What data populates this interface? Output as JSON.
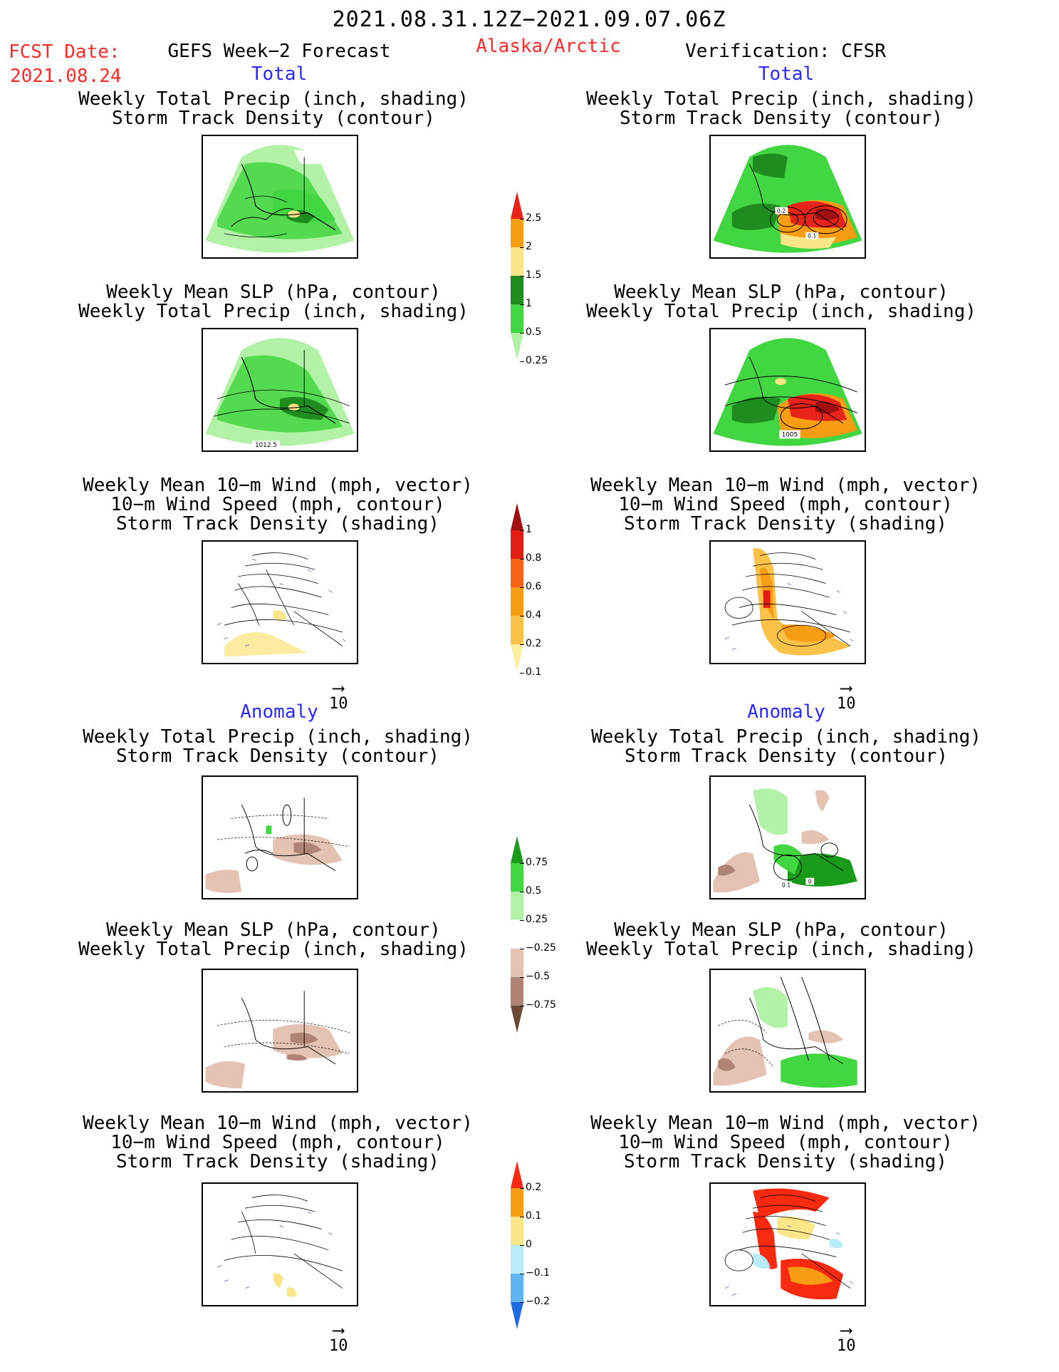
{
  "header": {
    "period": "2021.08.31.12Z−2021.09.07.06Z",
    "fcst_label": "FCST Date:",
    "fcst_date": "2021.08.24",
    "forecast_title": "GEFS Week−2 Forecast",
    "region": "Alaska/Arctic",
    "verification": "Verification: CFSR"
  },
  "sections": {
    "total_label": "Total",
    "anomaly_label": "Anomaly"
  },
  "panel_titles": {
    "precip_track": [
      "Weekly Total Precip (inch, shading)",
      "Storm Track Density (contour)"
    ],
    "slp_precip": [
      "Weekly Mean SLP (hPa, contour)",
      "Weekly Total Precip (inch, shading)"
    ],
    "wind_track": [
      "Weekly Mean 10−m Wind (mph, vector)",
      "10−m Wind Speed (mph, contour)",
      "Storm Track Density (shading)"
    ]
  },
  "map_labels": {
    "fc_slp": "1012.5",
    "vf_track_a": "0.2",
    "vf_track_b": "0.1",
    "vf_slp": "1005",
    "vf_anom_a": "0.1",
    "vf_anom_b": "0"
  },
  "vector_ref": "10",
  "colorbars": {
    "precip_total": {
      "labels": [
        "2.5",
        "2",
        "1.5",
        "1",
        "0.5",
        "0.25"
      ],
      "colors": [
        "#e8241a",
        "#f89c14",
        "#fce68a",
        "#1e8c1e",
        "#42d642",
        "#b2f2a6"
      ]
    },
    "track_total": {
      "labels": [
        "1",
        "0.8",
        "0.6",
        "0.4",
        "0.2",
        "0.1"
      ],
      "colors": [
        "#a01010",
        "#e01e14",
        "#f8641a",
        "#f89c14",
        "#fbc24a",
        "#fcf0a0"
      ]
    },
    "precip_anom": {
      "labels": [
        "0.75",
        "0.5",
        "0.25",
        "−0.25",
        "−0.5",
        "−0.75"
      ],
      "colors": [
        "#1a9a1a",
        "#42d642",
        "#b2f2a6",
        "#ffffff",
        "#e4c2b4",
        "#b08474",
        "#70483a"
      ]
    },
    "track_anom": {
      "labels": [
        "0.2",
        "0.1",
        "0",
        "−0.1",
        "−0.2"
      ],
      "colors": [
        "#f82a10",
        "#f89c14",
        "#fce68a",
        "#b8ecf8",
        "#60b4f0",
        "#1e6ce4"
      ]
    }
  }
}
